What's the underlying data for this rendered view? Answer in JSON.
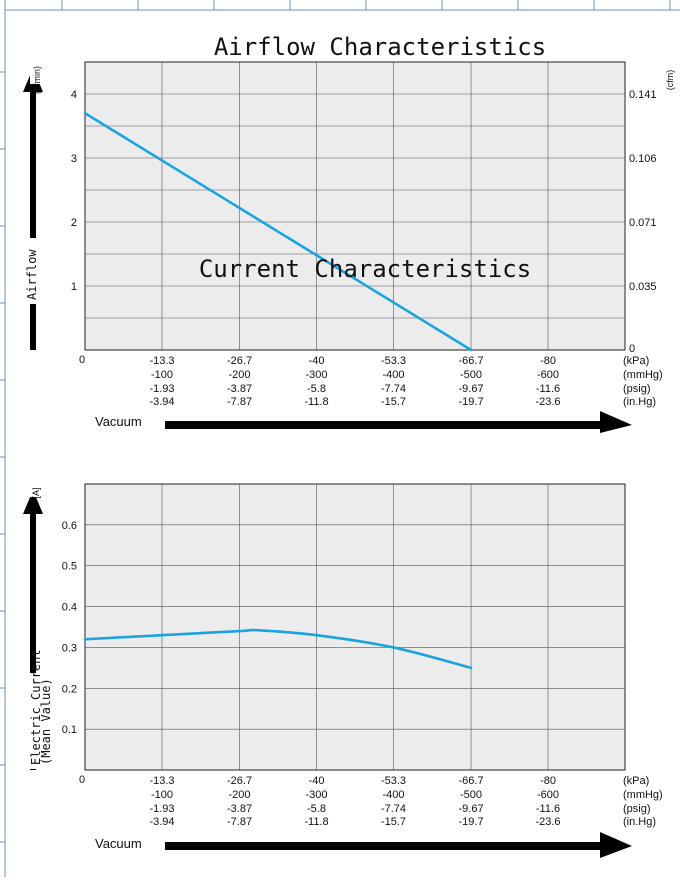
{
  "chart_data": [
    {
      "type": "line",
      "title": "Airflow Characteristics",
      "ylabel": "Airflow",
      "ylabel_unit": "(L/min)",
      "y2label_unit": "(cfm)",
      "ylim": [
        0,
        4.5
      ],
      "yticks": [
        1,
        2,
        3,
        4
      ],
      "y2ticks": [
        {
          "v": 0,
          "label": "0"
        },
        {
          "v": 1,
          "label": "0.035"
        },
        {
          "v": 2,
          "label": "0.071"
        },
        {
          "v": 3,
          "label": "0.106"
        },
        {
          "v": 4,
          "label": "0.141"
        }
      ],
      "origin_label": "0",
      "xlim": [
        0,
        -93.3
      ],
      "x_rows": [
        {
          "unit": "(kPa)",
          "labels": [
            "-13.3",
            "-26.7",
            "-40",
            "-53.3",
            "-66.7",
            "-80"
          ]
        },
        {
          "unit": "(mmHg)",
          "labels": [
            "-100",
            "-200",
            "-300",
            "-400",
            "-500",
            "-600"
          ]
        },
        {
          "unit": "(psig)",
          "labels": [
            "-1.93",
            "-3.87",
            "-5.8",
            "-7.74",
            "-9.67",
            "-11.6"
          ]
        },
        {
          "unit": "(in.Hg)",
          "labels": [
            "-3.94",
            "-7.87",
            "-11.8",
            "-15.7",
            "-19.7",
            "-23.6"
          ]
        }
      ],
      "xlabel": "Vacuum",
      "grid": true,
      "color": "#1ba3e0",
      "series": [
        {
          "x": [
            0,
            -66.7
          ],
          "y": [
            3.7,
            0
          ]
        }
      ]
    },
    {
      "type": "line",
      "title": "Current Characteristics",
      "ylabel": "Electric Current",
      "ylabel2": "(Mean Value)",
      "ylabel_unit": "[A]",
      "ylim": [
        0,
        0.7
      ],
      "yticks": [
        0.1,
        0.2,
        0.3,
        0.4,
        0.5,
        0.6
      ],
      "origin_label": "0",
      "xlim": [
        0,
        -93.3
      ],
      "x_rows": [
        {
          "unit": "(kPa)",
          "labels": [
            "-13.3",
            "-26.7",
            "-40",
            "-53.3",
            "-66.7",
            "-80"
          ]
        },
        {
          "unit": "(mmHg)",
          "labels": [
            "-100",
            "-200",
            "-300",
            "-400",
            "-500",
            "-600"
          ]
        },
        {
          "unit": "(psig)",
          "labels": [
            "-1.93",
            "-3.87",
            "-5.8",
            "-7.74",
            "-9.67",
            "-11.6"
          ]
        },
        {
          "unit": "(in.Hg)",
          "labels": [
            "-3.94",
            "-7.87",
            "-11.8",
            "-15.7",
            "-19.7",
            "-23.6"
          ]
        }
      ],
      "xlabel": "Vacuum",
      "grid": true,
      "color": "#1ba3e0",
      "series": [
        {
          "x": [
            0,
            -13.3,
            -26.7,
            -30,
            -40,
            -53.3,
            -66.7
          ],
          "y": [
            0.32,
            0.33,
            0.34,
            0.342,
            0.33,
            0.3,
            0.25
          ]
        }
      ]
    }
  ]
}
